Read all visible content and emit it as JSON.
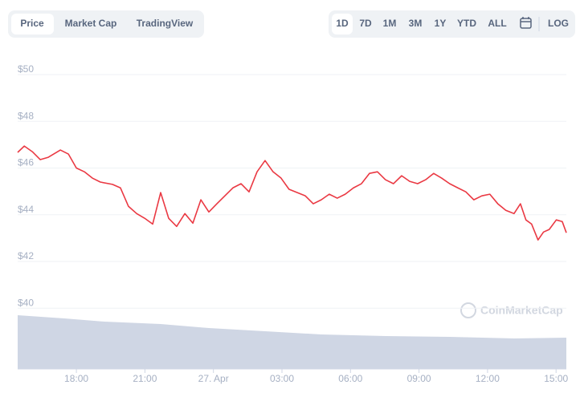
{
  "tabs": [
    "Price",
    "Market Cap",
    "TradingView"
  ],
  "range_buttons": [
    "1D",
    "7D",
    "1M",
    "3M",
    "1Y",
    "YTD",
    "ALL"
  ],
  "log_button": "LOG",
  "watermark": "CoinMarketCap",
  "chart_data": {
    "type": "line",
    "x": [
      -8.57,
      -8.28,
      -7.93,
      -7.58,
      -7.23,
      -6.7,
      -6.35,
      -6,
      -5.65,
      -5.3,
      -4.95,
      -4.42,
      -4.07,
      -3.72,
      -3.36,
      -3.01,
      -2.66,
      -2.31,
      -1.96,
      -1.61,
      -1.25,
      -0.9,
      -0.55,
      -0.2,
      0.15,
      0.5,
      0.85,
      1.21,
      1.56,
      1.91,
      2.26,
      2.61,
      2.96,
      3.31,
      3.67,
      4.02,
      4.37,
      4.72,
      5.07,
      5.42,
      5.77,
      6.13,
      6.48,
      6.83,
      7.18,
      7.53,
      7.88,
      8.24,
      8.59,
      8.94,
      9.29,
      9.64,
      9.99,
      10.34,
      10.7,
      11.05,
      11.4,
      11.75,
      12.1,
      12.45,
      12.8,
      13.16,
      13.44,
      13.68,
      13.93,
      14.21,
      14.45,
      14.7,
      15.01,
      15.27,
      15.45
    ],
    "series": [
      {
        "name": "Price",
        "color": "#ea3943",
        "values": [
          46.67,
          46.94,
          46.7,
          46.36,
          46.46,
          46.77,
          46.6,
          46.0,
          45.84,
          45.57,
          45.4,
          45.3,
          45.15,
          44.36,
          44.05,
          43.85,
          43.6,
          44.95,
          43.85,
          43.5,
          44.05,
          43.64,
          44.64,
          44.12,
          44.47,
          44.81,
          45.15,
          45.33,
          44.98,
          45.84,
          46.32,
          45.84,
          45.57,
          45.09,
          44.95,
          44.81,
          44.47,
          44.64,
          44.88,
          44.71,
          44.88,
          45.15,
          45.33,
          45.77,
          45.84,
          45.5,
          45.33,
          45.67,
          45.43,
          45.33,
          45.5,
          45.77,
          45.57,
          45.33,
          45.15,
          44.98,
          44.64,
          44.81,
          44.88,
          44.47,
          44.19,
          44.05,
          44.47,
          43.78,
          43.6,
          42.92,
          43.26,
          43.37,
          43.78,
          43.71,
          43.23
        ]
      }
    ],
    "xlim": [
      -8.57,
      15.45
    ],
    "xticks": [
      {
        "value": -6,
        "label": "18:00"
      },
      {
        "value": -3,
        "label": "21:00"
      },
      {
        "value": 0,
        "label": "27. Apr"
      },
      {
        "value": 3,
        "label": "03:00"
      },
      {
        "value": 6,
        "label": "06:00"
      },
      {
        "value": 9,
        "label": "09:00"
      },
      {
        "value": 12,
        "label": "12:00"
      },
      {
        "value": 15,
        "label": "15:00"
      }
    ],
    "ylim": [
      37.4,
      50.8
    ],
    "yticks": [
      {
        "value": 40,
        "label": "$40"
      },
      {
        "value": 42,
        "label": "$42"
      },
      {
        "value": 44,
        "label": "$44"
      },
      {
        "value": 46,
        "label": "$46"
      },
      {
        "value": 48,
        "label": "$48"
      },
      {
        "value": 50,
        "label": "$50"
      }
    ],
    "grid": true
  }
}
